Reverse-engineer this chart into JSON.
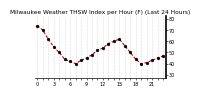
{
  "title": "Milwaukee Weather THSW Index per Hour (F) (Last 24 Hours)",
  "x_values": [
    0,
    1,
    2,
    3,
    4,
    5,
    6,
    7,
    8,
    9,
    10,
    11,
    12,
    13,
    14,
    15,
    16,
    17,
    18,
    19,
    20,
    21,
    22,
    23
  ],
  "y_values": [
    74,
    70,
    62,
    55,
    50,
    44,
    42,
    40,
    43,
    45,
    48,
    52,
    54,
    58,
    60,
    62,
    56,
    50,
    44,
    40,
    41,
    43,
    45,
    47
  ],
  "line_color": "#cc0000",
  "marker_color": "#000000",
  "bg_color": "#ffffff",
  "grid_color": "#bbbbbb",
  "y_ticks": [
    30,
    40,
    50,
    60,
    70,
    80
  ],
  "ylim": [
    27,
    83
  ],
  "xlim": [
    -0.5,
    23.5
  ],
  "title_fontsize": 4.2,
  "tick_fontsize": 3.5,
  "marker_size": 2.0,
  "line_width": 0.8
}
